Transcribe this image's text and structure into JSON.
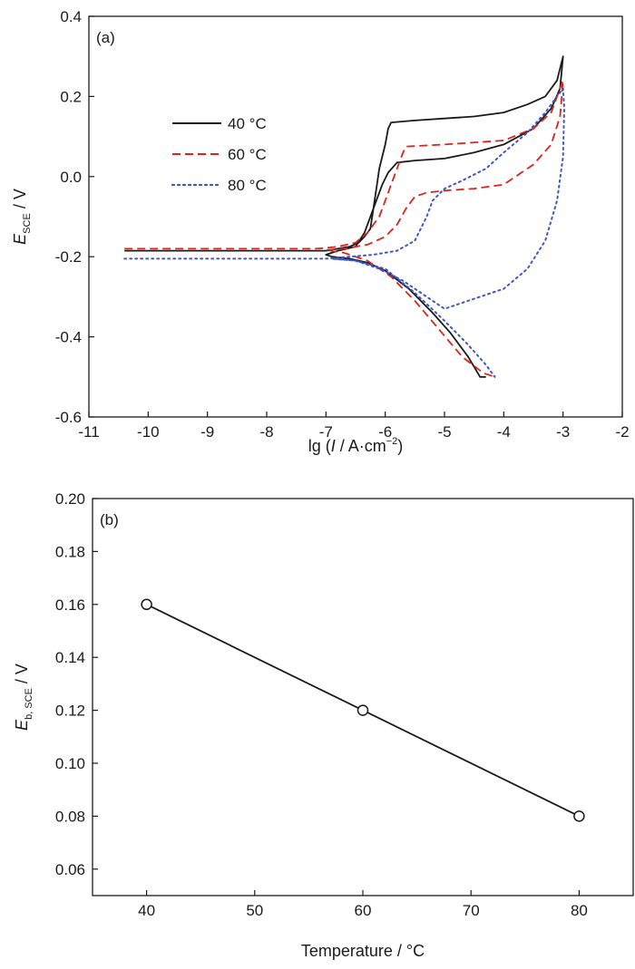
{
  "chart_data": [
    {
      "panel_label": "(a)",
      "type": "line",
      "title": "",
      "xlabel": {
        "prefix": "lg (",
        "italic": "I",
        "middle": " / A·cm",
        "sup": "−2",
        "suffix": ")"
      },
      "ylabel": {
        "italic": "E",
        "sub": "SCE",
        "suffix": " / V"
      },
      "xlim": [
        -11,
        -2
      ],
      "ylim": [
        -0.6,
        0.4
      ],
      "xticks": [
        -11,
        -10,
        -9,
        -8,
        -7,
        -6,
        -5,
        -4,
        -3,
        -2
      ],
      "yticks": [
        -0.6,
        -0.4,
        -0.2,
        0.0,
        0.2,
        0.4
      ],
      "xtick_labels": [
        "-11",
        "-10",
        "-9",
        "-8",
        "-7",
        "-6",
        "-5",
        "-4",
        "-3",
        "-2"
      ],
      "ytick_labels": [
        "-0.6",
        "-0.4",
        "-0.2",
        "0.0",
        "0.2",
        "0.4"
      ],
      "legend_position": "upper-left",
      "series": [
        {
          "name": "40 °C",
          "legend_value": "40",
          "legend_unit": "°C",
          "color": "#1a1a1a",
          "style": "solid",
          "points": [
            [
              -10.4,
              -0.185
            ],
            [
              -9,
              -0.185
            ],
            [
              -8,
              -0.185
            ],
            [
              -7.2,
              -0.185
            ],
            [
              -7.0,
              -0.185
            ],
            [
              -6.8,
              -0.18
            ],
            [
              -6.6,
              -0.175
            ],
            [
              -6.45,
              -0.165
            ],
            [
              -6.35,
              -0.15
            ],
            [
              -6.25,
              -0.13
            ],
            [
              -6.2,
              -0.08
            ],
            [
              -6.15,
              -0.03
            ],
            [
              -6.1,
              0.02
            ],
            [
              -6.0,
              0.08
            ],
            [
              -5.95,
              0.12
            ],
            [
              -5.9,
              0.135
            ],
            [
              -5.5,
              0.14
            ],
            [
              -5.0,
              0.145
            ],
            [
              -4.5,
              0.15
            ],
            [
              -4.0,
              0.16
            ],
            [
              -3.6,
              0.18
            ],
            [
              -3.3,
              0.2
            ],
            [
              -3.1,
              0.24
            ],
            [
              -3.0,
              0.3
            ],
            [
              -3.05,
              0.22
            ],
            [
              -3.2,
              0.17
            ],
            [
              -3.5,
              0.12
            ],
            [
              -4.0,
              0.08
            ],
            [
              -4.5,
              0.06
            ],
            [
              -5.0,
              0.045
            ],
            [
              -5.5,
              0.04
            ],
            [
              -5.8,
              0.035
            ],
            [
              -5.95,
              0.01
            ],
            [
              -6.05,
              -0.02
            ],
            [
              -6.2,
              -0.08
            ],
            [
              -6.35,
              -0.14
            ],
            [
              -6.5,
              -0.175
            ],
            [
              -6.8,
              -0.185
            ],
            [
              -7.0,
              -0.195
            ],
            [
              -6.9,
              -0.2
            ],
            [
              -6.6,
              -0.205
            ],
            [
              -6.3,
              -0.215
            ],
            [
              -6.0,
              -0.235
            ],
            [
              -5.6,
              -0.28
            ],
            [
              -5.2,
              -0.34
            ],
            [
              -4.9,
              -0.39
            ],
            [
              -4.6,
              -0.45
            ],
            [
              -4.4,
              -0.5
            ],
            [
              -4.3,
              -0.5
            ]
          ]
        },
        {
          "name": "60 °C",
          "legend_value": "60",
          "legend_unit": "°C",
          "color": "#d8251d",
          "style": "dashed",
          "points": [
            [
              -10.4,
              -0.18
            ],
            [
              -9,
              -0.18
            ],
            [
              -8,
              -0.18
            ],
            [
              -7.2,
              -0.18
            ],
            [
              -7.0,
              -0.178
            ],
            [
              -6.8,
              -0.175
            ],
            [
              -6.5,
              -0.165
            ],
            [
              -6.3,
              -0.14
            ],
            [
              -6.1,
              -0.1
            ],
            [
              -6.0,
              -0.06
            ],
            [
              -5.9,
              -0.02
            ],
            [
              -5.8,
              0.02
            ],
            [
              -5.7,
              0.06
            ],
            [
              -5.65,
              0.075
            ],
            [
              -5.0,
              0.08
            ],
            [
              -4.0,
              0.09
            ],
            [
              -3.5,
              0.12
            ],
            [
              -3.2,
              0.16
            ],
            [
              -3.0,
              0.24
            ],
            [
              -3.05,
              0.15
            ],
            [
              -3.2,
              0.08
            ],
            [
              -3.5,
              0.03
            ],
            [
              -4.0,
              -0.02
            ],
            [
              -4.5,
              -0.03
            ],
            [
              -5.0,
              -0.035
            ],
            [
              -5.3,
              -0.04
            ],
            [
              -5.5,
              -0.05
            ],
            [
              -5.65,
              -0.08
            ],
            [
              -5.8,
              -0.12
            ],
            [
              -6.0,
              -0.15
            ],
            [
              -6.3,
              -0.17
            ],
            [
              -6.7,
              -0.18
            ],
            [
              -7.0,
              -0.183
            ],
            [
              -6.7,
              -0.19
            ],
            [
              -6.3,
              -0.21
            ],
            [
              -5.9,
              -0.25
            ],
            [
              -5.5,
              -0.31
            ],
            [
              -5.1,
              -0.38
            ],
            [
              -4.7,
              -0.45
            ],
            [
              -4.35,
              -0.49
            ],
            [
              -4.15,
              -0.5
            ]
          ]
        },
        {
          "name": "80 °C",
          "legend_value": "80",
          "legend_unit": "°C",
          "color": "#3f56c6",
          "style": "dotted",
          "points": [
            [
              -10.4,
              -0.205
            ],
            [
              -9,
              -0.205
            ],
            [
              -8,
              -0.205
            ],
            [
              -7.2,
              -0.205
            ],
            [
              -7.0,
              -0.205
            ],
            [
              -6.6,
              -0.2
            ],
            [
              -6.2,
              -0.195
            ],
            [
              -5.8,
              -0.185
            ],
            [
              -5.5,
              -0.16
            ],
            [
              -5.3,
              -0.1
            ],
            [
              -5.2,
              -0.06
            ],
            [
              -5.0,
              -0.03
            ],
            [
              -4.7,
              -0.01
            ],
            [
              -4.3,
              0.02
            ],
            [
              -4.0,
              0.06
            ],
            [
              -3.6,
              0.11
            ],
            [
              -3.3,
              0.16
            ],
            [
              -3.1,
              0.2
            ],
            [
              -3.0,
              0.22
            ],
            [
              -2.98,
              0.17
            ],
            [
              -3.0,
              0.05
            ],
            [
              -3.1,
              -0.06
            ],
            [
              -3.3,
              -0.16
            ],
            [
              -3.6,
              -0.23
            ],
            [
              -4.0,
              -0.28
            ],
            [
              -4.6,
              -0.31
            ],
            [
              -5.0,
              -0.33
            ],
            [
              -5.3,
              -0.3
            ],
            [
              -5.7,
              -0.26
            ],
            [
              -6.1,
              -0.23
            ],
            [
              -6.5,
              -0.21
            ],
            [
              -6.9,
              -0.205
            ],
            [
              -6.5,
              -0.21
            ],
            [
              -6.0,
              -0.23
            ],
            [
              -5.5,
              -0.29
            ],
            [
              -5.0,
              -0.36
            ],
            [
              -4.6,
              -0.42
            ],
            [
              -4.3,
              -0.47
            ],
            [
              -4.15,
              -0.5
            ]
          ]
        }
      ]
    },
    {
      "panel_label": "(b)",
      "type": "line",
      "title": "",
      "xlabel": {
        "prefix": "Temperature / ",
        "unit": "°C"
      },
      "ylabel": {
        "italic": "E",
        "sub": "b, SCE",
        "suffix": " / V"
      },
      "xlim": [
        35,
        85
      ],
      "ylim": [
        0.05,
        0.2
      ],
      "xticks": [
        40,
        50,
        60,
        70,
        80
      ],
      "yticks": [
        0.06,
        0.08,
        0.1,
        0.12,
        0.14,
        0.16,
        0.18,
        0.2
      ],
      "xtick_labels": [
        "40",
        "50",
        "60",
        "70",
        "80"
      ],
      "ytick_labels": [
        "0.06",
        "0.08",
        "0.10",
        "0.12",
        "0.14",
        "0.16",
        "0.18",
        "0.20"
      ],
      "series": [
        {
          "name": "Eb,SCE",
          "color": "#1a1a1a",
          "x": [
            40,
            60,
            80
          ],
          "y": [
            0.16,
            0.12,
            0.08
          ]
        }
      ]
    }
  ]
}
